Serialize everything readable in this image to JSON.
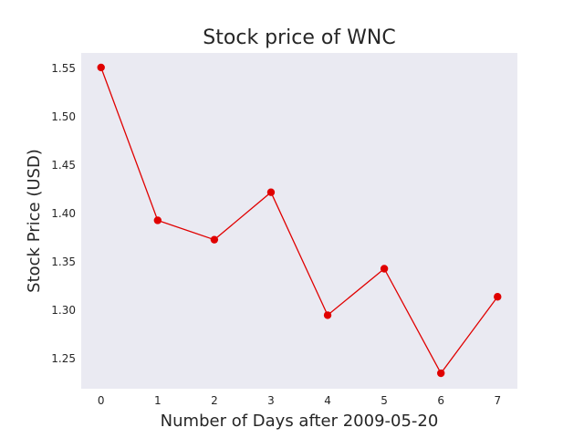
{
  "chart_data": {
    "type": "line",
    "title": "Stock price of WNC",
    "xlabel": "Number of Days after 2009-05-20",
    "ylabel": "Stock Price (USD)",
    "x": [
      0,
      1,
      2,
      3,
      4,
      5,
      6,
      7
    ],
    "series": [
      {
        "values": [
          1.551,
          1.393,
          1.373,
          1.422,
          1.295,
          1.343,
          1.235,
          1.314
        ],
        "color": "#e00000"
      }
    ],
    "xticks": [
      "0",
      "1",
      "2",
      "3",
      "4",
      "5",
      "6",
      "7"
    ],
    "yticks": [
      "1.25",
      "1.30",
      "1.35",
      "1.40",
      "1.45",
      "1.50",
      "1.55"
    ],
    "xlim": [
      -0.35,
      7.35
    ],
    "ylim": [
      1.219,
      1.566
    ],
    "grid": false,
    "background": "#eaeaf2"
  }
}
